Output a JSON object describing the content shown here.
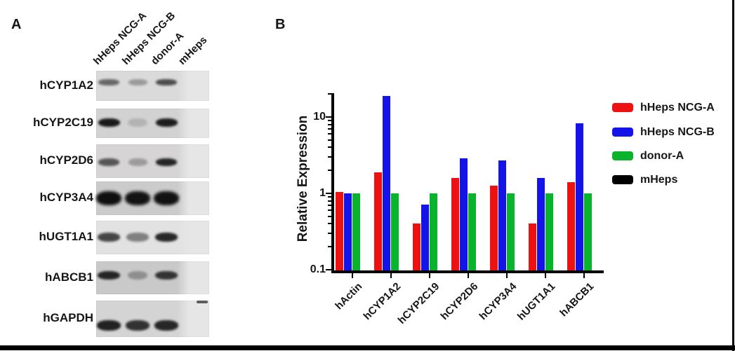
{
  "figure_title": "",
  "panel_a": {
    "label": "A",
    "lane_labels": [
      "hHeps NCG-A",
      "hHeps NCG-B",
      "donor-A",
      "mHeps"
    ],
    "rows": [
      {
        "gene": "hCYP1A2",
        "band_intensities": [
          0.55,
          0.3,
          0.68,
          0
        ]
      },
      {
        "gene": "hCYP2C19",
        "band_intensities": [
          0.92,
          0.15,
          0.9,
          0
        ]
      },
      {
        "gene": "hCYP2D6",
        "band_intensities": [
          0.62,
          0.28,
          0.86,
          0
        ]
      },
      {
        "gene": "hCYP3A4",
        "band_intensities": [
          0.97,
          0.95,
          0.96,
          0
        ]
      },
      {
        "gene": "hUGT1A1",
        "band_intensities": [
          0.72,
          0.45,
          0.86,
          0
        ]
      },
      {
        "gene": "hABCB1",
        "band_intensities": [
          0.86,
          0.3,
          0.78,
          0
        ]
      },
      {
        "gene": "hGAPDH",
        "band_intensities": [
          0.88,
          0.8,
          0.85,
          0
        ]
      }
    ]
  },
  "panel_b": {
    "label": "B"
  },
  "chart_data": {
    "type": "bar",
    "scale": "log",
    "title": "",
    "xlabel": "",
    "ylabel": "Relative Expression",
    "ylim": [
      0.1,
      20
    ],
    "yticks": [
      0.1,
      1,
      10
    ],
    "ytick_labels": [
      "0.1",
      "1",
      "10"
    ],
    "grid": false,
    "legend_position": "right",
    "categories": [
      "hActin",
      "hCYP1A2",
      "hCYP2C19",
      "hCYP2D6",
      "hCYP3A4",
      "hUGT1A1",
      "hABCB1"
    ],
    "series": [
      {
        "name": "hHeps NCG-A",
        "color": "#ee1111",
        "values": [
          1.05,
          1.9,
          0.4,
          1.6,
          1.25,
          0.4,
          1.4
        ]
      },
      {
        "name": "hHeps NCG-B",
        "color": "#1414e8",
        "values": [
          1.0,
          19.0,
          0.72,
          2.9,
          2.7,
          1.6,
          8.3
        ]
      },
      {
        "name": "donor-A",
        "color": "#0ab32c",
        "values": [
          1.0,
          1.0,
          1.0,
          1.0,
          1.0,
          1.0,
          1.0
        ]
      },
      {
        "name": "mHeps",
        "color": "#000000",
        "values": [
          0,
          0,
          0,
          0,
          0,
          0,
          0
        ]
      }
    ]
  }
}
